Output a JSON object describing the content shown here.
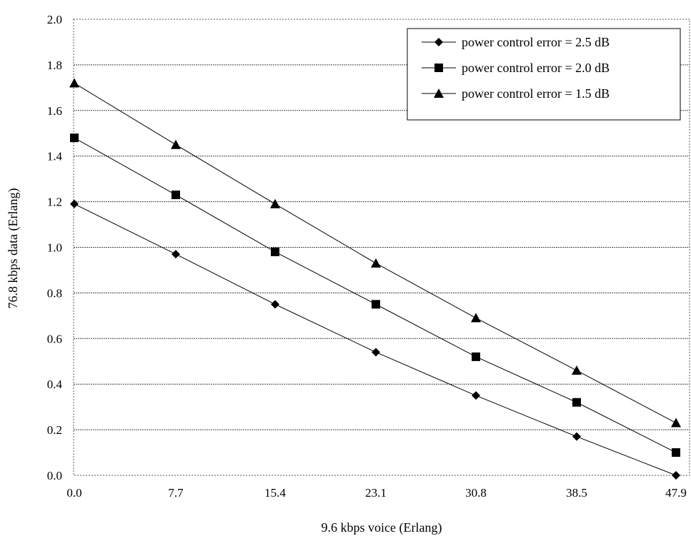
{
  "chart_data": {
    "type": "line",
    "xlabel": "9.6 kbps voice (Erlang)",
    "ylabel": "76.8 kbps data (Erlang)",
    "categories": [
      "0.0",
      "7.7",
      "15.4",
      "23.1",
      "30.8",
      "38.5",
      "47.9"
    ],
    "y_ticks": [
      "0.0",
      "0.2",
      "0.4",
      "0.6",
      "0.8",
      "1.0",
      "1.2",
      "1.4",
      "1.6",
      "1.8",
      "2.0"
    ],
    "ylim": [
      0,
      2.0
    ],
    "grid": "horizontal",
    "legend_position": "top-right",
    "series": [
      {
        "name": "power control error = 2.5 dB",
        "marker": "diamond",
        "values": [
          1.19,
          0.97,
          0.75,
          0.54,
          0.35,
          0.17,
          0.0
        ]
      },
      {
        "name": "power control error = 2.0 dB",
        "marker": "square",
        "values": [
          1.48,
          1.23,
          0.98,
          0.75,
          0.52,
          0.32,
          0.1
        ]
      },
      {
        "name": "power control error = 1.5 dB",
        "marker": "triangle",
        "values": [
          1.72,
          1.45,
          1.19,
          0.93,
          0.69,
          0.46,
          0.23
        ]
      }
    ]
  }
}
